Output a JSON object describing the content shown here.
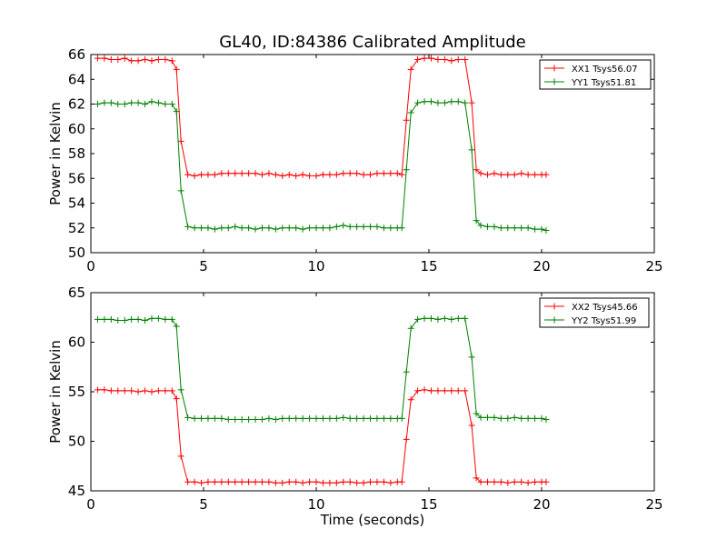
{
  "chart_data": [
    {
      "type": "line",
      "title": "GL40, ID:84386 Calibrated Amplitude",
      "ylabel": "Power in Kelvin",
      "xlabel": "",
      "xlim": [
        0,
        25
      ],
      "ylim": [
        50,
        66
      ],
      "xticks": [
        "0",
        "5",
        "10",
        "15",
        "20",
        "25"
      ],
      "yticks": [
        "50",
        "52",
        "54",
        "56",
        "58",
        "60",
        "62",
        "64",
        "66"
      ],
      "legend_position": "top-right",
      "x": [
        0.3,
        0.6,
        0.9,
        1.2,
        1.5,
        1.8,
        2.1,
        2.4,
        2.7,
        3.0,
        3.3,
        3.6,
        3.8,
        4.0,
        4.3,
        4.6,
        4.9,
        5.2,
        5.5,
        5.8,
        6.1,
        6.4,
        6.7,
        7.0,
        7.3,
        7.6,
        7.9,
        8.2,
        8.5,
        8.8,
        9.1,
        9.4,
        9.7,
        10.0,
        10.3,
        10.6,
        10.9,
        11.2,
        11.5,
        11.8,
        12.1,
        12.4,
        12.7,
        13.0,
        13.3,
        13.6,
        13.8,
        14.0,
        14.2,
        14.5,
        14.8,
        15.1,
        15.4,
        15.7,
        16.0,
        16.3,
        16.6,
        16.9,
        17.1,
        17.3,
        17.6,
        17.9,
        18.2,
        18.5,
        18.8,
        19.1,
        19.4,
        19.7,
        20.0,
        20.2
      ],
      "series": [
        {
          "name": "XX1 Tsys56.07",
          "color": "#ff0000",
          "values": [
            65.7,
            65.7,
            65.6,
            65.6,
            65.7,
            65.5,
            65.5,
            65.6,
            65.5,
            65.6,
            65.6,
            65.5,
            64.8,
            59.0,
            56.3,
            56.2,
            56.3,
            56.3,
            56.3,
            56.4,
            56.4,
            56.4,
            56.4,
            56.4,
            56.4,
            56.3,
            56.4,
            56.3,
            56.2,
            56.3,
            56.2,
            56.3,
            56.2,
            56.2,
            56.3,
            56.3,
            56.3,
            56.4,
            56.4,
            56.4,
            56.3,
            56.3,
            56.4,
            56.4,
            56.4,
            56.4,
            56.3,
            60.7,
            64.8,
            65.6,
            65.7,
            65.7,
            65.6,
            65.6,
            65.5,
            65.6,
            65.6,
            62.1,
            56.7,
            56.4,
            56.3,
            56.4,
            56.3,
            56.3,
            56.3,
            56.4,
            56.3,
            56.3,
            56.3,
            56.3
          ]
        },
        {
          "name": "YY1 Tsys51.81",
          "color": "#008000",
          "values": [
            62.0,
            62.1,
            62.1,
            62.0,
            62.0,
            62.1,
            62.1,
            62.0,
            62.2,
            62.1,
            62.0,
            62.0,
            61.4,
            55.0,
            52.1,
            52.0,
            52.0,
            52.0,
            51.9,
            52.0,
            52.0,
            52.1,
            52.0,
            52.0,
            51.9,
            52.0,
            52.0,
            51.9,
            52.0,
            52.0,
            52.0,
            51.9,
            52.0,
            52.0,
            52.0,
            52.0,
            52.1,
            52.2,
            52.1,
            52.1,
            52.1,
            52.1,
            52.1,
            52.0,
            52.0,
            52.0,
            52.0,
            56.7,
            61.3,
            62.1,
            62.2,
            62.2,
            62.1,
            62.1,
            62.2,
            62.2,
            62.1,
            58.3,
            52.6,
            52.2,
            52.1,
            52.1,
            52.0,
            52.0,
            52.0,
            52.0,
            52.0,
            51.9,
            51.9,
            51.8
          ]
        }
      ]
    },
    {
      "type": "line",
      "title": "",
      "ylabel": "Power in Kelvin",
      "xlabel": "Time (seconds)",
      "xlim": [
        0,
        25
      ],
      "ylim": [
        45,
        65
      ],
      "xticks": [
        "0",
        "5",
        "10",
        "15",
        "20",
        "25"
      ],
      "yticks": [
        "45",
        "50",
        "55",
        "60",
        "65"
      ],
      "legend_position": "top-right",
      "x": [
        0.3,
        0.6,
        0.9,
        1.2,
        1.5,
        1.8,
        2.1,
        2.4,
        2.7,
        3.0,
        3.3,
        3.6,
        3.8,
        4.0,
        4.3,
        4.6,
        4.9,
        5.2,
        5.5,
        5.8,
        6.1,
        6.4,
        6.7,
        7.0,
        7.3,
        7.6,
        7.9,
        8.2,
        8.5,
        8.8,
        9.1,
        9.4,
        9.7,
        10.0,
        10.3,
        10.6,
        10.9,
        11.2,
        11.5,
        11.8,
        12.1,
        12.4,
        12.7,
        13.0,
        13.3,
        13.6,
        13.8,
        14.0,
        14.2,
        14.5,
        14.8,
        15.1,
        15.4,
        15.7,
        16.0,
        16.3,
        16.6,
        16.9,
        17.1,
        17.3,
        17.6,
        17.9,
        18.2,
        18.5,
        18.8,
        19.1,
        19.4,
        19.7,
        20.0,
        20.2
      ],
      "series": [
        {
          "name": "XX2 Tsys45.66",
          "color": "#ff0000",
          "values": [
            55.2,
            55.2,
            55.1,
            55.1,
            55.1,
            55.1,
            55.0,
            55.1,
            55.0,
            55.1,
            55.1,
            55.1,
            54.3,
            48.5,
            45.9,
            45.9,
            45.8,
            45.9,
            45.9,
            45.9,
            45.9,
            45.9,
            45.9,
            45.9,
            45.9,
            45.9,
            45.9,
            45.8,
            45.8,
            45.9,
            45.9,
            45.8,
            45.9,
            45.9,
            45.8,
            45.8,
            45.8,
            45.9,
            45.9,
            45.8,
            45.8,
            45.9,
            45.9,
            45.9,
            45.8,
            45.9,
            45.9,
            50.2,
            54.2,
            55.1,
            55.2,
            55.1,
            55.1,
            55.1,
            55.1,
            55.1,
            55.1,
            51.6,
            46.3,
            45.9,
            45.9,
            45.9,
            45.9,
            45.8,
            45.9,
            45.9,
            45.8,
            45.9,
            45.9,
            45.9
          ]
        },
        {
          "name": "YY2 Tsys51.99",
          "color": "#008000",
          "values": [
            62.3,
            62.3,
            62.3,
            62.2,
            62.2,
            62.3,
            62.3,
            62.2,
            62.4,
            62.4,
            62.3,
            62.3,
            61.6,
            55.2,
            52.4,
            52.3,
            52.3,
            52.3,
            52.3,
            52.3,
            52.2,
            52.2,
            52.2,
            52.2,
            52.2,
            52.2,
            52.3,
            52.2,
            52.3,
            52.3,
            52.3,
            52.3,
            52.3,
            52.3,
            52.3,
            52.3,
            52.3,
            52.4,
            52.3,
            52.3,
            52.3,
            52.3,
            52.3,
            52.3,
            52.3,
            52.3,
            52.3,
            57.0,
            61.4,
            62.3,
            62.4,
            62.4,
            62.3,
            62.4,
            62.3,
            62.4,
            62.4,
            58.5,
            52.8,
            52.4,
            52.4,
            52.4,
            52.3,
            52.3,
            52.4,
            52.3,
            52.3,
            52.3,
            52.3,
            52.2
          ]
        }
      ]
    }
  ]
}
